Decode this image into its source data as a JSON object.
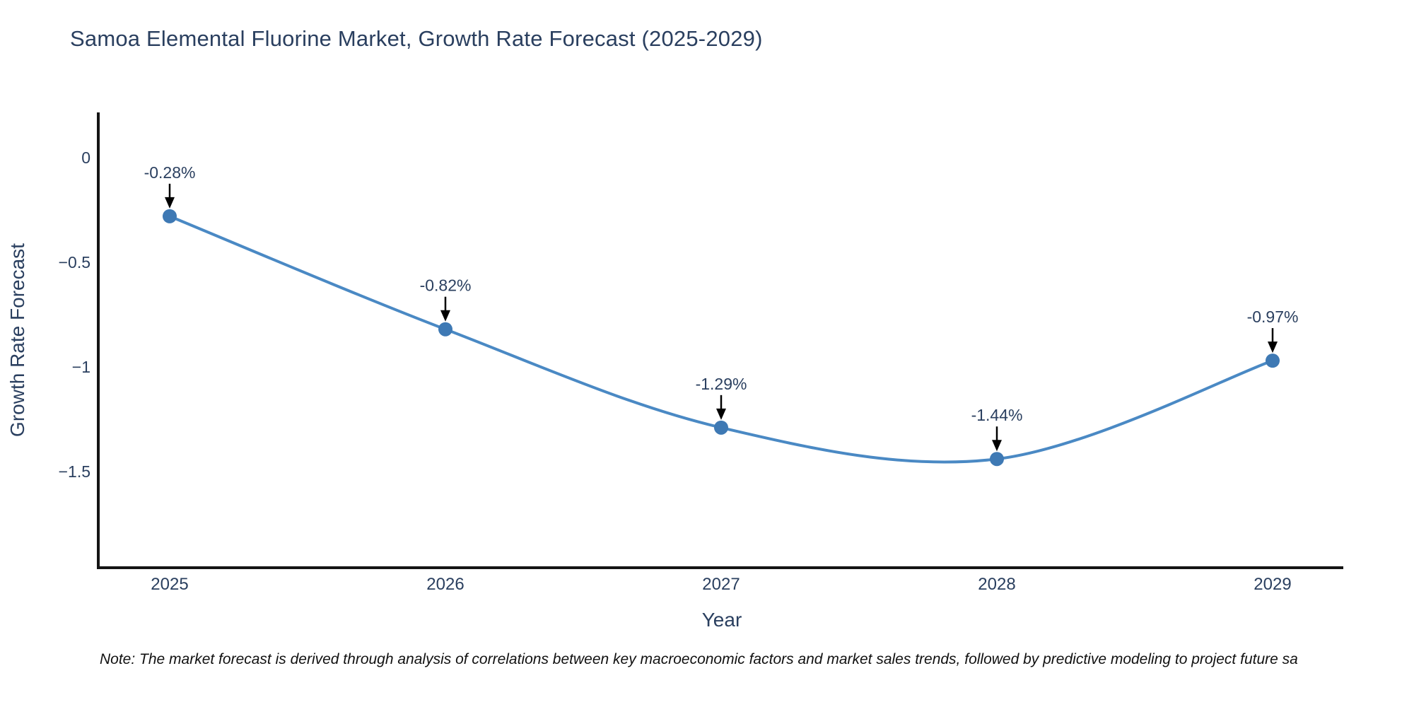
{
  "chart": {
    "title": "Samoa Elemental Fluorine Market, Growth Rate Forecast (2025-2029)"
  },
  "chart_data": {
    "type": "line",
    "line_shape": "spline",
    "title": "Samoa Elemental Fluorine Market, Growth Rate Forecast (2025-2029)",
    "categories": [
      "2025",
      "2026",
      "2027",
      "2028",
      "2029"
    ],
    "series": [
      {
        "name": "Growth Rate Forecast",
        "values": [
          -0.28,
          -0.82,
          -1.29,
          -1.44,
          -0.97
        ],
        "point_labels": [
          "-0.28%",
          "-0.82%",
          "-1.29%",
          "-1.44%",
          "-0.97%"
        ]
      }
    ],
    "xlabel": "Year",
    "ylabel": "Growth Rate Forecast",
    "yticks": [
      0,
      -0.5,
      -1,
      -1.5
    ],
    "ytick_labels": [
      "0",
      "−0.5",
      "−1",
      "−1.5"
    ],
    "ylim": [
      -1.96,
      0.22
    ],
    "grid": false,
    "legend_position": "none",
    "annotation_style": "down-arrow",
    "colors": {
      "line": "#4a89c4",
      "marker": "#3e79b4",
      "axis": "#141414",
      "text": "#2a3f5f",
      "arrow": "#000000",
      "note_text": "#111111",
      "background": "#ffffff"
    }
  },
  "note": {
    "text": "Note: The market forecast is derived through analysis of correlations between key macroeconomic factors and market sales trends, followed by predictive modeling to project future sa"
  }
}
